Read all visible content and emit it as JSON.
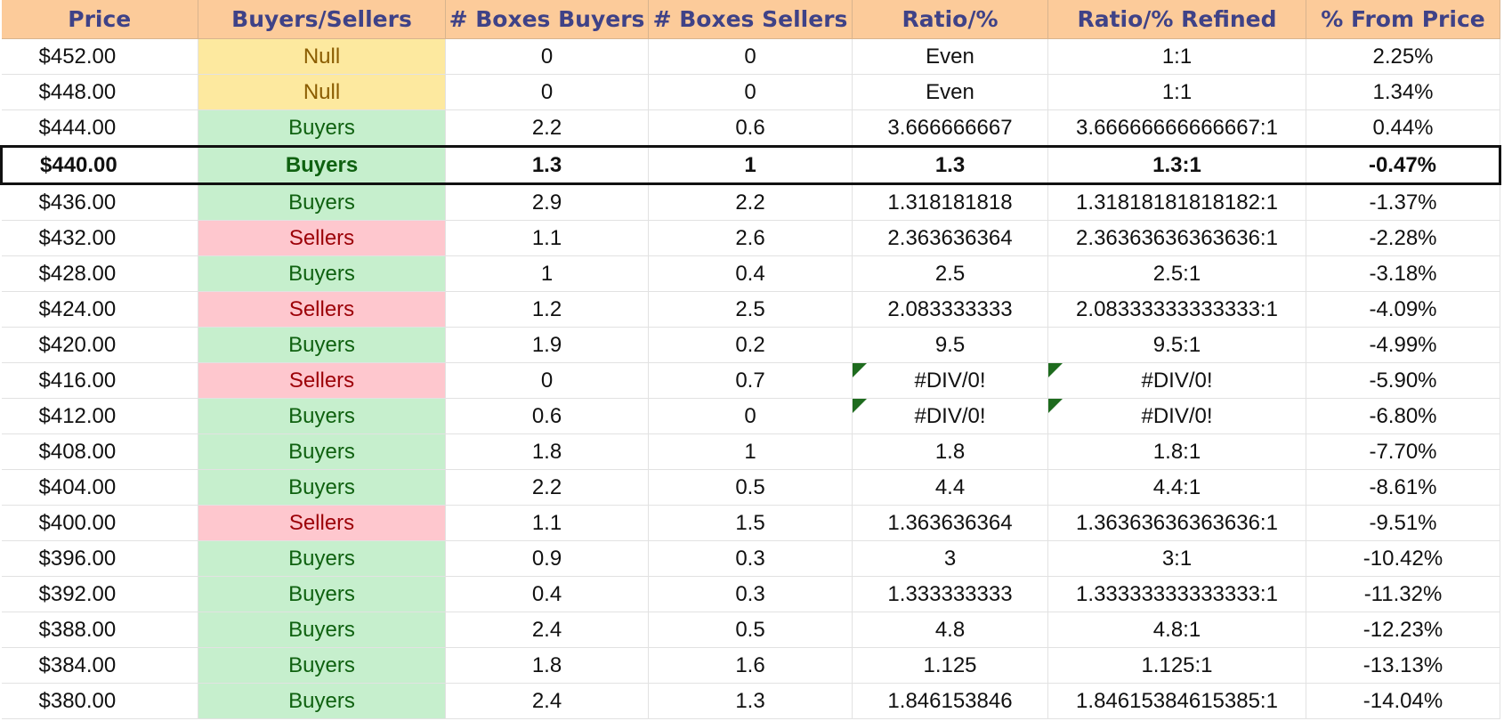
{
  "columns": [
    "Price",
    "Buyers/Sellers",
    "# Boxes Buyers",
    "# Boxes Sellers",
    "Ratio/%",
    "Ratio/% Refined",
    "% From Price"
  ],
  "colors": {
    "header_bg": "#fccb9a",
    "header_text": "#3f4287",
    "null_bg": "#fde99f",
    "null_text": "#8a5c00",
    "buyers_bg": "#c6efcd",
    "buyers_text": "#0f6110",
    "sellers_bg": "#fec7ce",
    "sellers_text": "#9c0007",
    "error_flag": "#1e6b1e"
  },
  "current_row_index": 3,
  "rows": [
    {
      "price": "$452.00",
      "signal": "Null",
      "boxes_buyers": "0",
      "boxes_sellers": "0",
      "ratio": "Even",
      "ratio_refined": "1:1",
      "pct_from_price": "2.25%"
    },
    {
      "price": "$448.00",
      "signal": "Null",
      "boxes_buyers": "0",
      "boxes_sellers": "0",
      "ratio": "Even",
      "ratio_refined": "1:1",
      "pct_from_price": "1.34%"
    },
    {
      "price": "$444.00",
      "signal": "Buyers",
      "boxes_buyers": "2.2",
      "boxes_sellers": "0.6",
      "ratio": "3.666666667",
      "ratio_refined": "3.66666666666667:1",
      "pct_from_price": "0.44%"
    },
    {
      "price": "$440.00",
      "signal": "Buyers",
      "boxes_buyers": "1.3",
      "boxes_sellers": "1",
      "ratio": "1.3",
      "ratio_refined": "1.3:1",
      "pct_from_price": "-0.47%"
    },
    {
      "price": "$436.00",
      "signal": "Buyers",
      "boxes_buyers": "2.9",
      "boxes_sellers": "2.2",
      "ratio": "1.318181818",
      "ratio_refined": "1.31818181818182:1",
      "pct_from_price": "-1.37%"
    },
    {
      "price": "$432.00",
      "signal": "Sellers",
      "boxes_buyers": "1.1",
      "boxes_sellers": "2.6",
      "ratio": "2.363636364",
      "ratio_refined": "2.36363636363636:1",
      "pct_from_price": "-2.28%"
    },
    {
      "price": "$428.00",
      "signal": "Buyers",
      "boxes_buyers": "1",
      "boxes_sellers": "0.4",
      "ratio": "2.5",
      "ratio_refined": "2.5:1",
      "pct_from_price": "-3.18%"
    },
    {
      "price": "$424.00",
      "signal": "Sellers",
      "boxes_buyers": "1.2",
      "boxes_sellers": "2.5",
      "ratio": "2.083333333",
      "ratio_refined": "2.08333333333333:1",
      "pct_from_price": "-4.09%"
    },
    {
      "price": "$420.00",
      "signal": "Buyers",
      "boxes_buyers": "1.9",
      "boxes_sellers": "0.2",
      "ratio": "9.5",
      "ratio_refined": "9.5:1",
      "pct_from_price": "-4.99%"
    },
    {
      "price": "$416.00",
      "signal": "Sellers",
      "boxes_buyers": "0",
      "boxes_sellers": "0.7",
      "ratio": "#DIV/0!",
      "ratio_refined": "#DIV/0!",
      "pct_from_price": "-5.90%"
    },
    {
      "price": "$412.00",
      "signal": "Buyers",
      "boxes_buyers": "0.6",
      "boxes_sellers": "0",
      "ratio": "#DIV/0!",
      "ratio_refined": "#DIV/0!",
      "pct_from_price": "-6.80%"
    },
    {
      "price": "$408.00",
      "signal": "Buyers",
      "boxes_buyers": "1.8",
      "boxes_sellers": "1",
      "ratio": "1.8",
      "ratio_refined": "1.8:1",
      "pct_from_price": "-7.70%"
    },
    {
      "price": "$404.00",
      "signal": "Buyers",
      "boxes_buyers": "2.2",
      "boxes_sellers": "0.5",
      "ratio": "4.4",
      "ratio_refined": "4.4:1",
      "pct_from_price": "-8.61%"
    },
    {
      "price": "$400.00",
      "signal": "Sellers",
      "boxes_buyers": "1.1",
      "boxes_sellers": "1.5",
      "ratio": "1.363636364",
      "ratio_refined": "1.36363636363636:1",
      "pct_from_price": "-9.51%"
    },
    {
      "price": "$396.00",
      "signal": "Buyers",
      "boxes_buyers": "0.9",
      "boxes_sellers": "0.3",
      "ratio": "3",
      "ratio_refined": "3:1",
      "pct_from_price": "-10.42%"
    },
    {
      "price": "$392.00",
      "signal": "Buyers",
      "boxes_buyers": "0.4",
      "boxes_sellers": "0.3",
      "ratio": "1.333333333",
      "ratio_refined": "1.33333333333333:1",
      "pct_from_price": "-11.32%"
    },
    {
      "price": "$388.00",
      "signal": "Buyers",
      "boxes_buyers": "2.4",
      "boxes_sellers": "0.5",
      "ratio": "4.8",
      "ratio_refined": "4.8:1",
      "pct_from_price": "-12.23%"
    },
    {
      "price": "$384.00",
      "signal": "Buyers",
      "boxes_buyers": "1.8",
      "boxes_sellers": "1.6",
      "ratio": "1.125",
      "ratio_refined": "1.125:1",
      "pct_from_price": "-13.13%"
    },
    {
      "price": "$380.00",
      "signal": "Buyers",
      "boxes_buyers": "2.4",
      "boxes_sellers": "1.3",
      "ratio": "1.846153846",
      "ratio_refined": "1.84615384615385:1",
      "pct_from_price": "-14.04%"
    }
  ]
}
